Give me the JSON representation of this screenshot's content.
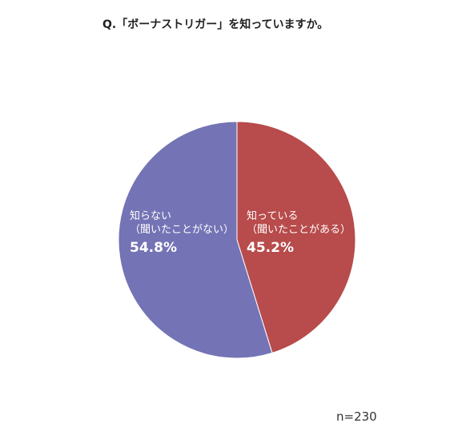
{
  "chart_data": {
    "type": "pie",
    "title": "Q.「ボーナストリガー」を知っていますか。",
    "categories": [
      "知っている\n（聞いたことがある）",
      "知らない\n（聞いたことがない）"
    ],
    "values": [
      45.2,
      54.8
    ],
    "value_labels": [
      "45.2%",
      "54.8%"
    ],
    "colors": [
      "#b84b4b",
      "#7473b5"
    ],
    "note": "n=230"
  }
}
